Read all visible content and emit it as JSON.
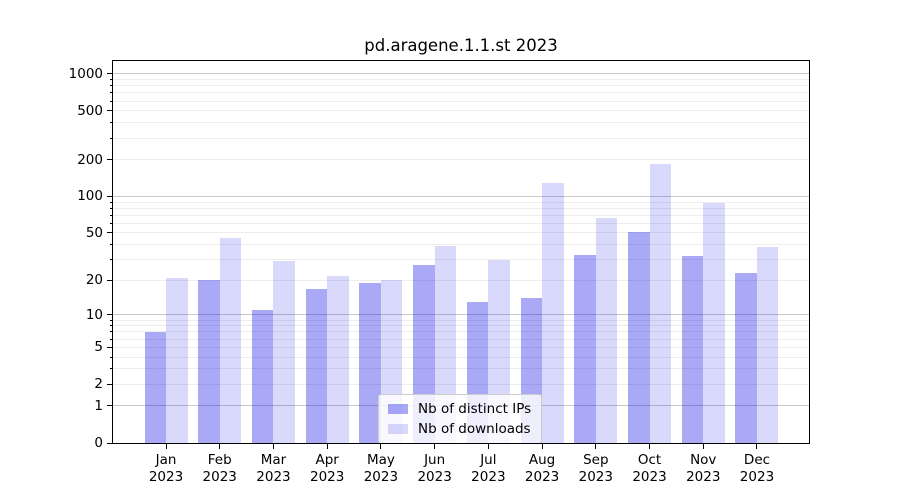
{
  "chart_data": {
    "type": "bar",
    "title": "pd.aragene.1.1.st 2023",
    "categories": [
      "Jan",
      "Feb",
      "Mar",
      "Apr",
      "May",
      "Jun",
      "Jul",
      "Aug",
      "Sep",
      "Oct",
      "Nov",
      "Dec"
    ],
    "year_label": "2023",
    "series": [
      {
        "name": "Nb of distinct IPs",
        "color": "rgba(16,16,228,0.36)",
        "values": [
          7,
          20,
          11,
          17,
          19,
          27,
          13,
          14,
          33,
          51,
          32,
          23
        ]
      },
      {
        "name": "Nb of downloads",
        "color": "rgba(16,16,228,0.16)",
        "values": [
          21,
          45,
          29,
          22,
          20,
          39,
          30,
          130,
          67,
          185,
          89,
          38
        ]
      }
    ],
    "yscale": "log1p",
    "yticks": [
      0,
      1,
      2,
      5,
      10,
      20,
      50,
      100,
      200,
      500,
      1000
    ],
    "ylim": [
      0,
      1274
    ],
    "grid": true,
    "legend": {
      "position": "lower center"
    },
    "colors": {
      "grid_major": "#c9c9c9",
      "grid_minor": "#ededed",
      "spine": "#000000",
      "text": "#000000",
      "legend_border": "#cccccc",
      "legend_bg": "rgba(255,255,255,0.8)"
    }
  }
}
